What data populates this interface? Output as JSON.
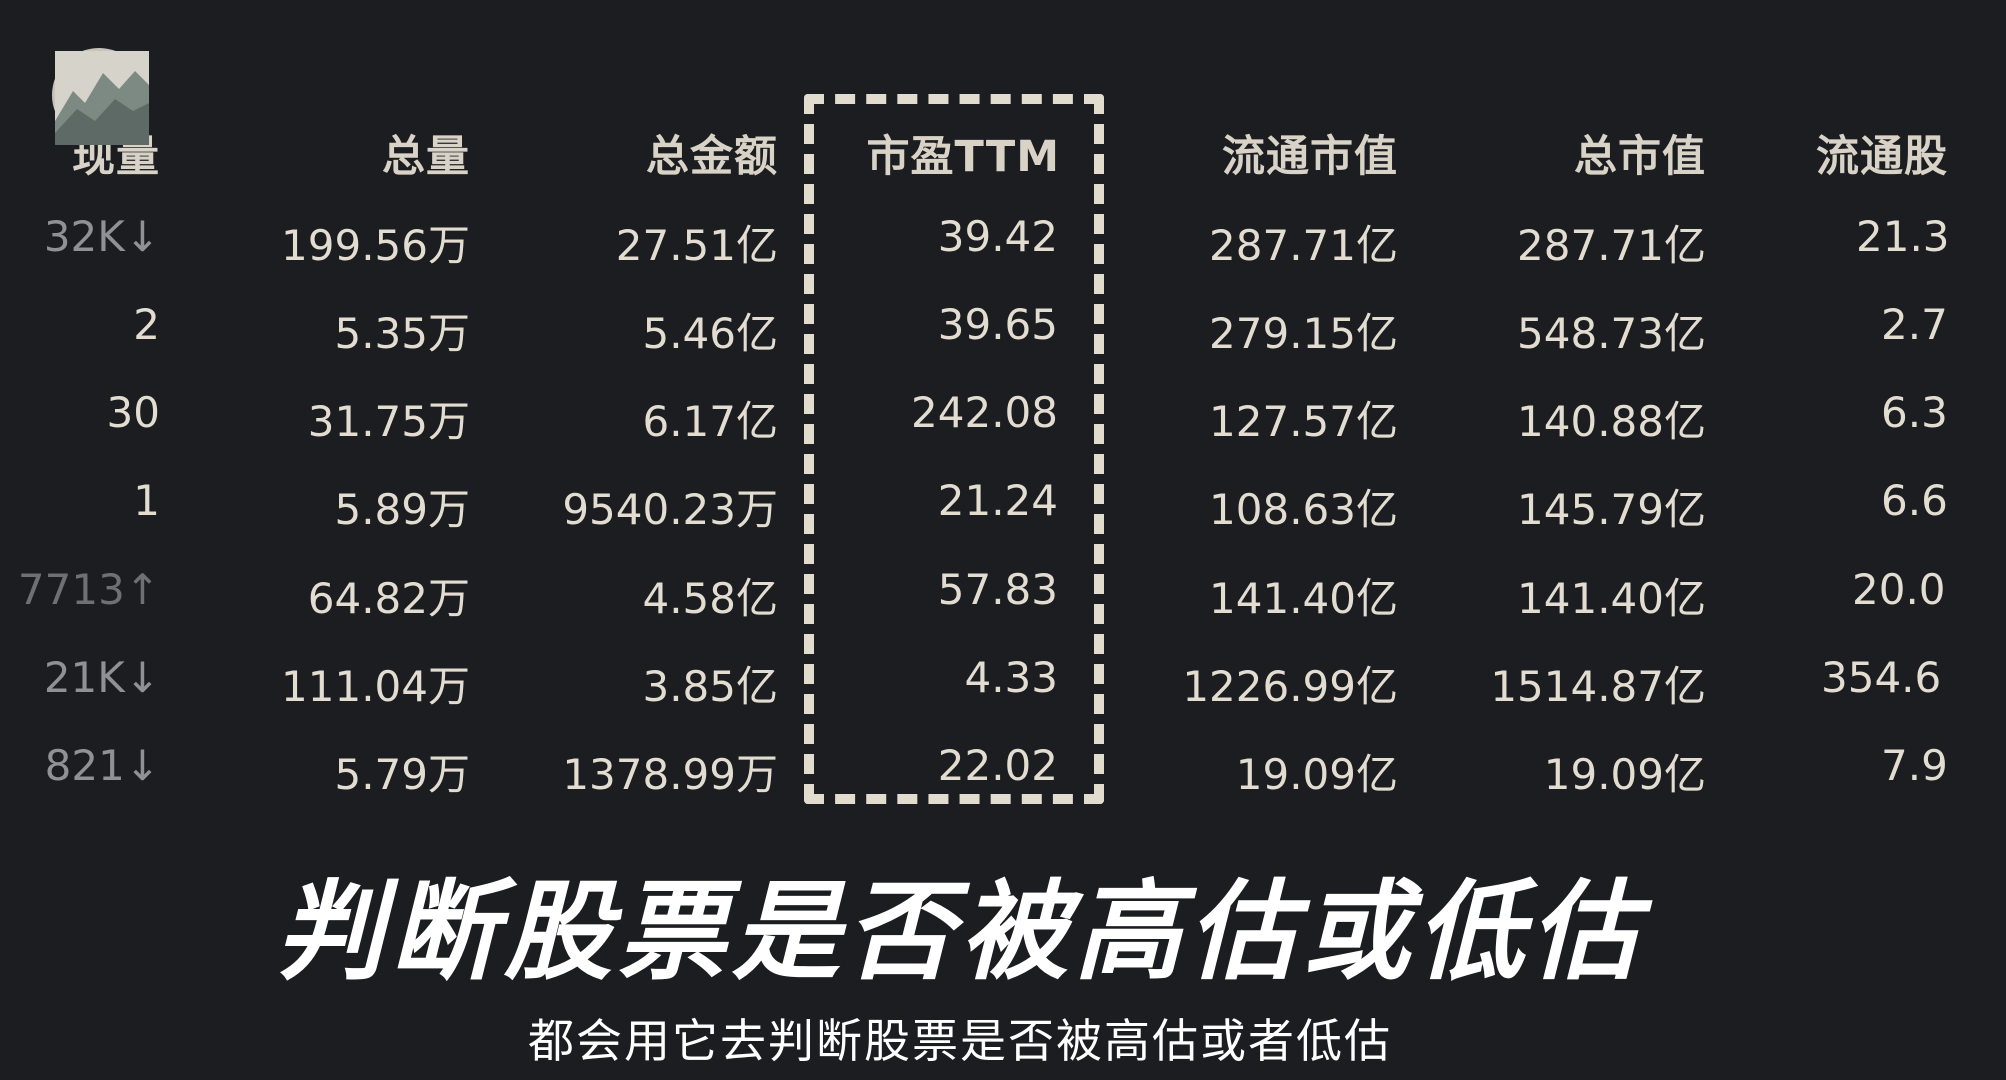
{
  "table": {
    "headers": [
      "现量",
      "总量",
      "总金额",
      "市盈TTM",
      "流通市值",
      "总市值",
      "流通股"
    ],
    "rows": [
      [
        "32K↓",
        "199.56万",
        "27.51亿",
        "39.42",
        "287.71亿",
        "287.71亿",
        "21.3"
      ],
      [
        "2",
        "5.35万",
        "5.46亿",
        "39.65",
        "279.15亿",
        "548.73亿",
        "2.7"
      ],
      [
        "30",
        "31.75万",
        "6.17亿",
        "242.08",
        "127.57亿",
        "140.88亿",
        "6.3"
      ],
      [
        "1",
        "5.89万",
        "9540.23万",
        "21.24",
        "108.63亿",
        "145.79亿",
        "6.6"
      ],
      [
        "7713↑",
        "64.82万",
        "4.58亿",
        "57.83",
        "141.40亿",
        "141.40亿",
        "20.0"
      ],
      [
        "21K↓",
        "111.04万",
        "3.85亿",
        "4.33",
        "1226.99亿",
        "1514.87亿",
        "354.6"
      ],
      [
        "821↓",
        "5.79万",
        "1378.99万",
        "22.02",
        "19.09亿",
        "19.09亿",
        "7.9"
      ]
    ]
  },
  "highlight": {
    "column": "市盈TTM",
    "color": "#e2dccf"
  },
  "caption": {
    "headline": "判断股票是否被高估或低估",
    "subtitle": "都会用它去判断股票是否被高估或者低估"
  },
  "colors": {
    "background": "#1c1d21",
    "text": "#e3ddd1",
    "dim_text": "#8e9196"
  }
}
